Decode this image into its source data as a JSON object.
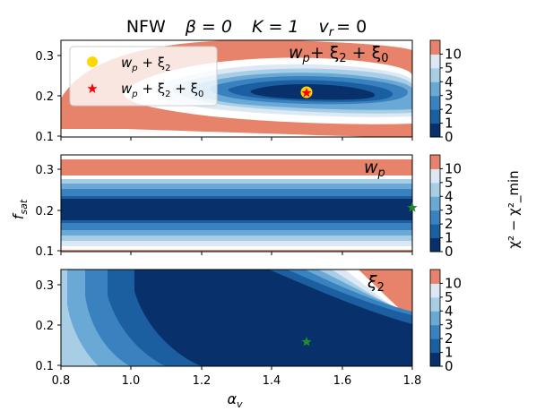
{
  "figure": {
    "title": "NFW   β = 0   K = 1   v_r = 0",
    "title_parts": [
      "NFW",
      "β = 0",
      "K = 1",
      "v",
      "r",
      "= 0"
    ]
  },
  "axes": {
    "xlabel_main": "α",
    "xlabel_sub": "v",
    "ylabel_main": "f",
    "ylabel_sub": "sat",
    "xticks": [
      "0.8",
      "1.0",
      "1.2",
      "1.4",
      "1.6",
      "1.8"
    ],
    "yticks": [
      "0.1",
      "0.2",
      "0.3"
    ]
  },
  "colorbar": {
    "label": "χ² − χ²_min",
    "ticks": [
      "0",
      "1",
      "2",
      "3",
      "4",
      "5",
      "10"
    ],
    "colors": [
      "#08306b",
      "#1c5fa0",
      "#3a82bf",
      "#6aa8d5",
      "#a8ceE6",
      "#dce9f4",
      "#e6836a"
    ]
  },
  "panels": [
    {
      "label_text": "w_p + ξ_2 + ξ_0",
      "label_parts": [
        "w",
        "p",
        "+ ξ",
        "2",
        "+ ξ",
        "0"
      ],
      "legend": [
        {
          "text_parts": [
            "w",
            "p",
            " + ξ",
            "2"
          ],
          "marker": "circle",
          "color": "#ffd700"
        },
        {
          "text_parts": [
            "w",
            "p",
            " + ξ",
            "2",
            " + ξ",
            "0"
          ],
          "marker": "star",
          "color": "#ff0000"
        }
      ]
    },
    {
      "label_text": "w_p",
      "label_parts": [
        "w",
        "p"
      ]
    },
    {
      "label_text": "ξ_2",
      "label_parts": [
        "ξ",
        "2"
      ]
    }
  ],
  "chart_data": [
    {
      "type": "contour",
      "title": "NFW   β = 0   K = 1   v_r = 0",
      "panel": "w_p + ξ_2 + ξ_0",
      "xlim": [
        0.8,
        1.8
      ],
      "ylim": [
        0.1,
        0.34
      ],
      "levels": [
        0,
        1,
        2,
        3,
        4,
        5,
        10
      ],
      "best_fit": {
        "x": 1.5,
        "y": 0.21
      },
      "legend": [
        "w_p + ξ_2",
        "w_p + ξ_2 + ξ_0"
      ]
    },
    {
      "type": "contour",
      "panel": "w_p",
      "xlim": [
        0.8,
        1.8
      ],
      "ylim": [
        0.1,
        0.34
      ],
      "levels": [
        0,
        1,
        2,
        3,
        4,
        5,
        10
      ],
      "best_fit": {
        "x": 1.8,
        "y": 0.21
      }
    },
    {
      "type": "contour",
      "panel": "ξ_2",
      "xlim": [
        0.8,
        1.8
      ],
      "ylim": [
        0.1,
        0.34
      ],
      "levels": [
        0,
        1,
        2,
        3,
        4,
        5,
        10
      ],
      "best_fit": {
        "x": 1.5,
        "y": 0.16
      }
    }
  ]
}
